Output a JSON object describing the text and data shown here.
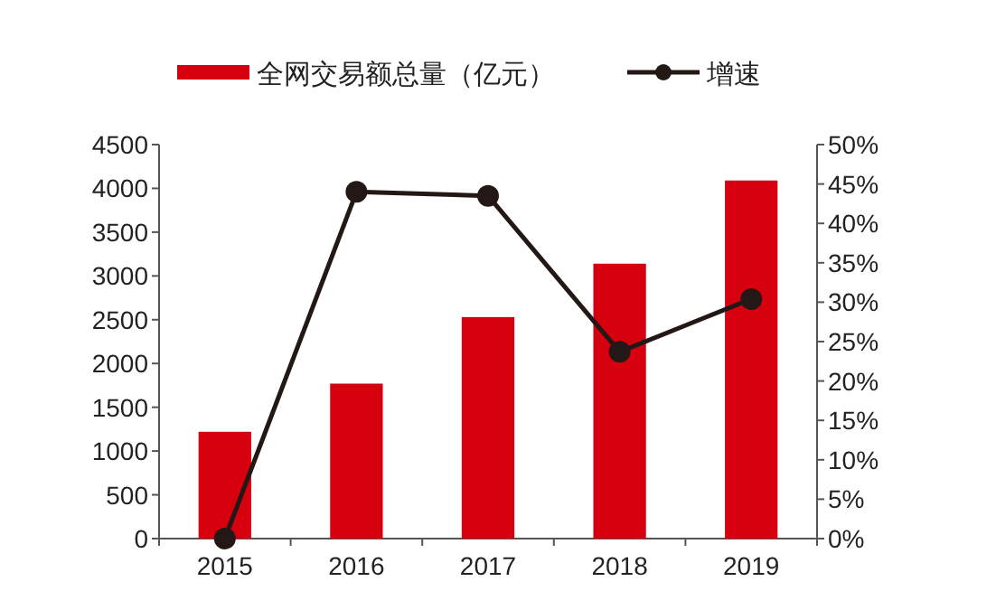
{
  "chart_data": {
    "type": "bar",
    "categories": [
      "2015",
      "2016",
      "2017",
      "2018",
      "2019"
    ],
    "series": [
      {
        "name": "全网交易额总量（亿元）",
        "color": "#d7000f",
        "values": [
          1220,
          1770,
          2530,
          3140,
          4090
        ]
      },
      {
        "name": "增速",
        "type": "line",
        "axis": "y2",
        "color": "#231815",
        "marker": "circle",
        "values": [
          0,
          44.0,
          43.5,
          23.7,
          30.4
        ]
      }
    ],
    "ylim": [
      0,
      4500
    ],
    "yticks": [
      0,
      500,
      1000,
      1500,
      2000,
      2500,
      3000,
      3500,
      4000,
      4500
    ],
    "y2lim": [
      0,
      50
    ],
    "y2ticks": [
      {
        "value": 0,
        "label": "0%"
      },
      {
        "value": 5,
        "label": "5%"
      },
      {
        "value": 10,
        "label": "10%"
      },
      {
        "value": 15,
        "label": "15%"
      },
      {
        "value": 20,
        "label": "20%"
      },
      {
        "value": 25,
        "label": "25%"
      },
      {
        "value": 30,
        "label": "30%"
      },
      {
        "value": 35,
        "label": "35%"
      },
      {
        "value": 40,
        "label": "40%"
      },
      {
        "value": 45,
        "label": "45%"
      },
      {
        "value": 50,
        "label": "50%"
      }
    ],
    "grid": false,
    "legend": "top"
  }
}
